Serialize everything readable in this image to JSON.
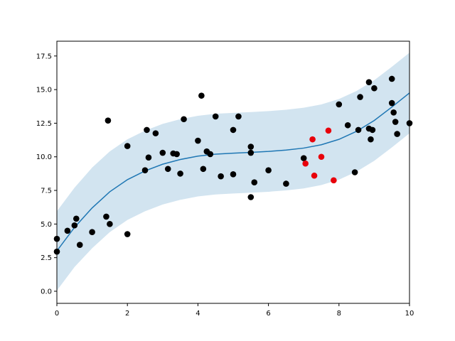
{
  "colors": {
    "fit_line": "#1f77b4",
    "band_fill": "#1f77b4",
    "black_points": "#000000",
    "red_points": "#e8000b"
  },
  "chart_data": {
    "type": "scatter",
    "title": "",
    "xlabel": "",
    "ylabel": "",
    "xlim": [
      0,
      10
    ],
    "ylim": [
      -0.9,
      18.6
    ],
    "grid": false,
    "legend": "none",
    "x_ticks": [
      "0",
      "2",
      "4",
      "6",
      "8",
      "10"
    ],
    "y_ticks": [
      "0.0",
      "2.5",
      "5.0",
      "7.5",
      "10.0",
      "12.5",
      "15.0",
      "17.5"
    ],
    "fit_line": {
      "x": [
        0,
        0.5,
        1,
        1.5,
        2,
        2.5,
        3,
        3.5,
        4,
        4.5,
        5,
        5.5,
        6,
        6.5,
        7,
        7.5,
        8,
        8.5,
        9,
        9.5,
        10
      ],
      "y": [
        3.0,
        4.75,
        6.2,
        7.4,
        8.3,
        8.95,
        9.45,
        9.8,
        10.05,
        10.2,
        10.27,
        10.33,
        10.4,
        10.5,
        10.65,
        10.9,
        11.3,
        11.9,
        12.7,
        13.7,
        14.75
      ]
    },
    "confidence_band": {
      "x": [
        0,
        0.5,
        1,
        1.5,
        2,
        2.5,
        3,
        3.5,
        4,
        4.5,
        5,
        5.5,
        6,
        6.5,
        7,
        7.5,
        8,
        8.5,
        9,
        9.5,
        10
      ],
      "lower": [
        0.05,
        1.8,
        3.2,
        4.4,
        5.3,
        5.95,
        6.45,
        6.8,
        7.05,
        7.2,
        7.27,
        7.33,
        7.4,
        7.5,
        7.65,
        7.9,
        8.3,
        8.9,
        9.7,
        10.7,
        11.75
      ],
      "upper": [
        5.95,
        7.7,
        9.2,
        10.4,
        11.3,
        11.95,
        12.45,
        12.8,
        13.05,
        13.2,
        13.27,
        13.33,
        13.4,
        13.5,
        13.65,
        13.9,
        14.3,
        14.9,
        15.7,
        16.7,
        17.75
      ]
    },
    "series": [
      {
        "color": "#000000",
        "points": [
          [
            0.0,
            3.9
          ],
          [
            0.0,
            2.95
          ],
          [
            0.3,
            4.5
          ],
          [
            0.5,
            4.9
          ],
          [
            0.55,
            5.4
          ],
          [
            0.65,
            3.45
          ],
          [
            1.0,
            4.4
          ],
          [
            1.4,
            5.55
          ],
          [
            1.45,
            12.7
          ],
          [
            1.5,
            5.0
          ],
          [
            2.0,
            10.8
          ],
          [
            2.0,
            4.25
          ],
          [
            2.5,
            9.0
          ],
          [
            2.55,
            12.0
          ],
          [
            2.6,
            9.95
          ],
          [
            2.8,
            11.75
          ],
          [
            3.0,
            10.3
          ],
          [
            3.15,
            9.1
          ],
          [
            3.3,
            10.25
          ],
          [
            3.4,
            10.2
          ],
          [
            3.5,
            8.75
          ],
          [
            3.6,
            12.8
          ],
          [
            4.0,
            11.2
          ],
          [
            4.1,
            14.55
          ],
          [
            4.15,
            9.1
          ],
          [
            4.25,
            10.4
          ],
          [
            4.35,
            10.2
          ],
          [
            4.5,
            13.0
          ],
          [
            4.65,
            8.55
          ],
          [
            5.0,
            12.0
          ],
          [
            5.0,
            8.7
          ],
          [
            5.15,
            13.0
          ],
          [
            5.5,
            10.75
          ],
          [
            5.5,
            10.3
          ],
          [
            5.5,
            7.0
          ],
          [
            5.6,
            8.1
          ],
          [
            6.0,
            9.0
          ],
          [
            6.5,
            8.0
          ],
          [
            7.0,
            9.9
          ],
          [
            8.0,
            13.9
          ],
          [
            8.25,
            12.35
          ],
          [
            8.45,
            8.85
          ],
          [
            8.55,
            12.0
          ],
          [
            8.6,
            14.45
          ],
          [
            8.85,
            15.55
          ],
          [
            8.85,
            12.1
          ],
          [
            8.9,
            11.3
          ],
          [
            8.95,
            12.0
          ],
          [
            9.0,
            15.1
          ],
          [
            9.5,
            15.8
          ],
          [
            9.5,
            14.0
          ],
          [
            9.55,
            13.3
          ],
          [
            9.6,
            12.6
          ],
          [
            9.65,
            11.7
          ],
          [
            10.0,
            12.5
          ]
        ]
      },
      {
        "color": "#e8000b",
        "points": [
          [
            7.05,
            9.5
          ],
          [
            7.25,
            11.3
          ],
          [
            7.3,
            8.6
          ],
          [
            7.5,
            10.0
          ],
          [
            7.7,
            11.95
          ],
          [
            7.85,
            8.25
          ]
        ]
      }
    ]
  }
}
